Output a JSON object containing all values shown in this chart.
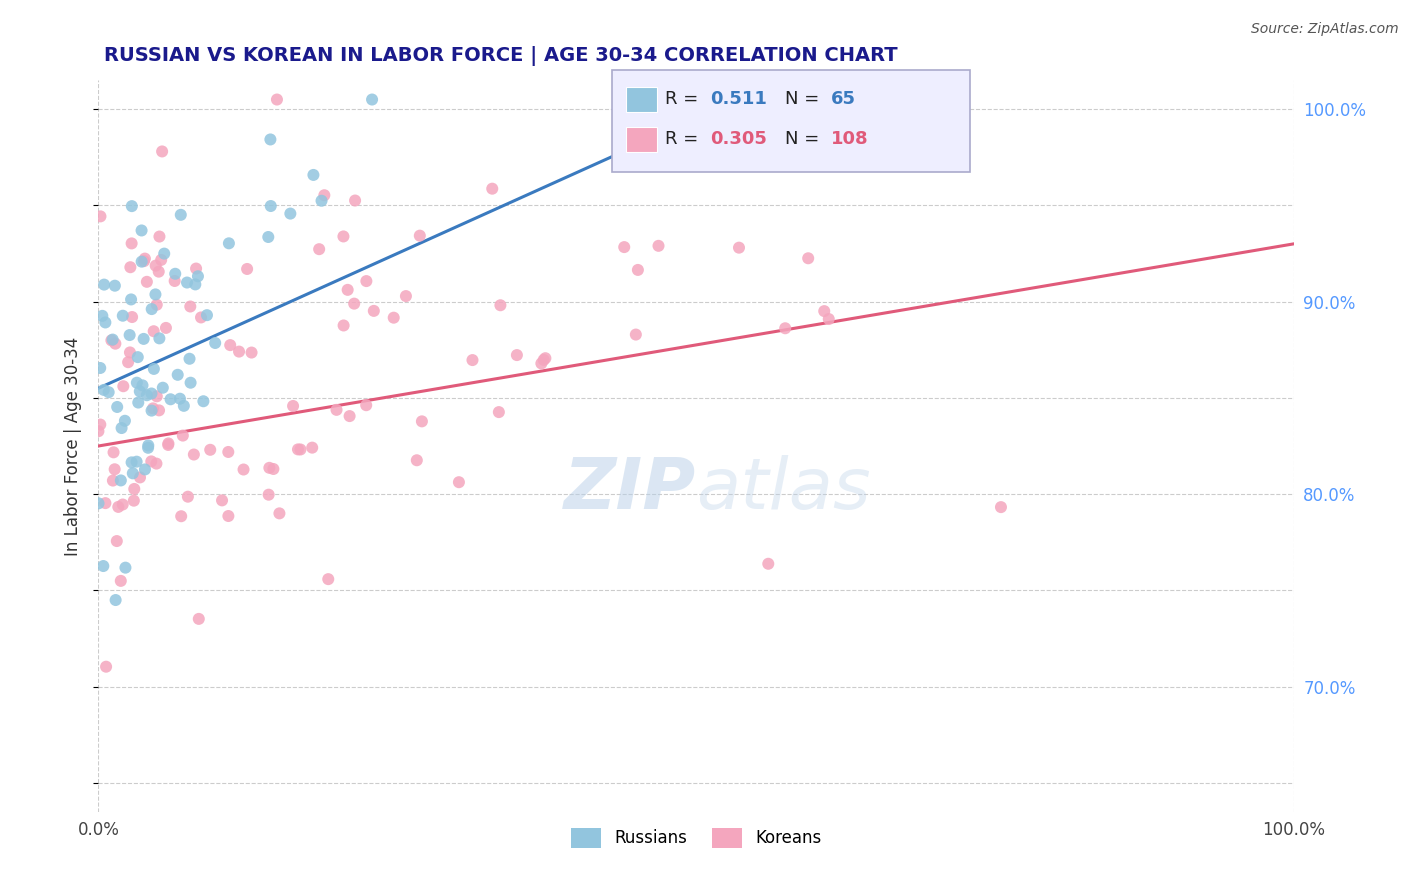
{
  "title": "RUSSIAN VS KOREAN IN LABOR FORCE | AGE 30-34 CORRELATION CHART",
  "source": "Source: ZipAtlas.com",
  "ylabel": "In Labor Force | Age 30-34",
  "xlim": [
    0.0,
    1.0
  ],
  "ylim": [
    0.635,
    1.015
  ],
  "right_yticks": [
    0.7,
    0.8,
    0.9,
    1.0
  ],
  "right_yticklabels": [
    "70.0%",
    "80.0%",
    "90.0%",
    "100.0%"
  ],
  "russian_R": 0.511,
  "russian_N": 65,
  "korean_R": 0.305,
  "korean_N": 108,
  "russian_color": "#92c5de",
  "korean_color": "#f4a6be",
  "russian_line_color": "#3a7abf",
  "korean_line_color": "#e05a7a",
  "background_color": "#ffffff",
  "grid_color": "#cccccc",
  "watermark_zip": "ZIP",
  "watermark_atlas": "atlas",
  "legend_box_color": "#eeeeff",
  "legend_border_color": "#aaaacc",
  "title_color": "#1a1a8c",
  "source_color": "#555555",
  "right_tick_color": "#5599ff"
}
